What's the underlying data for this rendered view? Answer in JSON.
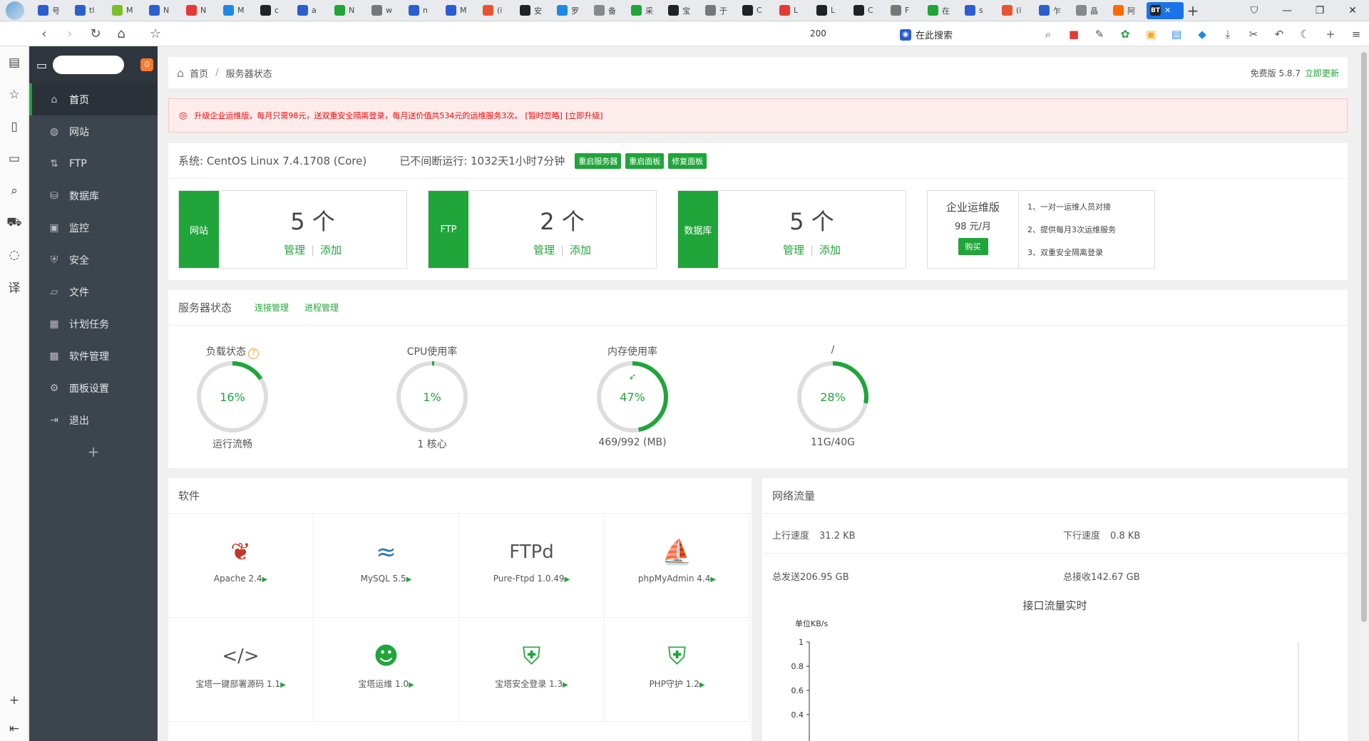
{
  "browser": {
    "tabs": [
      {
        "icon": "tab-favicon",
        "label": "号",
        "color": "#2b5ecf"
      },
      {
        "icon": "tab-favicon",
        "label": "tl",
        "color": "#2b5ecf"
      },
      {
        "icon": "tab-favicon",
        "label": "M",
        "color": "#7bbf2a"
      },
      {
        "icon": "tab-favicon",
        "label": "N",
        "color": "#2b5ecf"
      },
      {
        "icon": "tab-favicon",
        "label": "N",
        "color": "#e53935"
      },
      {
        "icon": "tab-favicon",
        "label": "M",
        "color": "#1e88e5"
      },
      {
        "icon": "tab-favicon",
        "label": "c",
        "color": "#222222"
      },
      {
        "icon": "tab-favicon",
        "label": "a",
        "color": "#2b5ecf"
      },
      {
        "icon": "tab-favicon",
        "label": "N",
        "color": "#20a53a"
      },
      {
        "icon": "tab-favicon",
        "label": "w",
        "color": "#777777"
      },
      {
        "icon": "tab-favicon",
        "label": "n",
        "color": "#2b5ecf"
      },
      {
        "icon": "tab-favicon",
        "label": "M",
        "color": "#2b5ecf"
      },
      {
        "icon": "tab-favicon",
        "label": "(i",
        "color": "#e8542f"
      },
      {
        "icon": "tab-favicon",
        "label": "安",
        "color": "#222222"
      },
      {
        "icon": "tab-favicon",
        "label": "罗",
        "color": "#1e88e5"
      },
      {
        "icon": "tab-favicon",
        "label": "备",
        "color": "#888888"
      },
      {
        "icon": "tab-favicon",
        "label": "采",
        "color": "#20a53a"
      },
      {
        "icon": "tab-favicon",
        "label": "宝",
        "color": "#222222"
      },
      {
        "icon": "tab-favicon",
        "label": "于",
        "color": "#777777"
      },
      {
        "icon": "tab-favicon",
        "label": "C",
        "color": "#222222"
      },
      {
        "icon": "tab-favicon",
        "label": "L",
        "color": "#e53935"
      },
      {
        "icon": "tab-favicon",
        "label": "L",
        "color": "#222222"
      },
      {
        "icon": "tab-favicon",
        "label": "C",
        "color": "#222222"
      },
      {
        "icon": "tab-favicon",
        "label": "F",
        "color": "#777777"
      },
      {
        "icon": "tab-favicon",
        "label": "在",
        "color": "#20a53a"
      },
      {
        "icon": "tab-favicon",
        "label": "s",
        "color": "#2b5ecf"
      },
      {
        "icon": "tab-favicon",
        "label": "(i",
        "color": "#e8542f"
      },
      {
        "icon": "tab-favicon",
        "label": "乍",
        "color": "#2b5ecf"
      },
      {
        "icon": "tab-favicon",
        "label": "晶",
        "color": "#888888"
      },
      {
        "icon": "tab-favicon",
        "label": "阿",
        "color": "#ff6a00"
      }
    ],
    "active_tab": {
      "label": "BT"
    },
    "zoom": "200",
    "search_placeholder": "在此搜索"
  },
  "panel": {
    "badge": "0",
    "menu": [
      {
        "label": "首页",
        "icon": "home-icon"
      },
      {
        "label": "网站",
        "icon": "globe-icon"
      },
      {
        "label": "FTP",
        "icon": "ftp-icon"
      },
      {
        "label": "数据库",
        "icon": "database-icon"
      },
      {
        "label": "监控",
        "icon": "monitor-icon"
      },
      {
        "label": "安全",
        "icon": "shield-icon"
      },
      {
        "label": "文件",
        "icon": "folder-icon"
      },
      {
        "label": "计划任务",
        "icon": "calendar-icon"
      },
      {
        "label": "软件管理",
        "icon": "apps-icon"
      },
      {
        "label": "面板设置",
        "icon": "settings-icon"
      },
      {
        "label": "退出",
        "icon": "logout-icon"
      }
    ],
    "add": "+"
  },
  "breadcrumb": {
    "home": "首页",
    "current": "服务器状态",
    "version": "免费版 5.8.7",
    "update": "立即更新"
  },
  "alert": {
    "text": "升级企业运维版，每月只需98元，送双重安全隔离登录，每月送价值共534元的运维服务3次。",
    "ignore": "[暂时忽略]",
    "upgrade": "[立即升级]"
  },
  "system": {
    "os": "系统: CentOS Linux 7.4.1708 (Core)",
    "uptime": "已不间断运行: 1032天1小时7分钟",
    "restart_server": "重启服务器",
    "restart_panel": "重启面板",
    "repair_panel": "修复面板"
  },
  "stats": [
    {
      "tag": "网站",
      "count": "5 个",
      "manage": "管理",
      "add": "添加"
    },
    {
      "tag": "FTP",
      "count": "2 个",
      "manage": "管理",
      "add": "添加"
    },
    {
      "tag": "数据库",
      "count": "5 个",
      "manage": "管理",
      "add": "添加"
    }
  ],
  "enterprise": {
    "title": "企业运维版",
    "price": "98 元/月",
    "buy": "购买",
    "features": [
      "1、一对一运维人员对接",
      "2、提供每月3次运维服务",
      "3、双重安全隔离登录"
    ]
  },
  "server_status": {
    "title": "服务器状态",
    "link_conn": "连接管理",
    "link_proc": "进程管理",
    "gauges": [
      {
        "title": "负载状态",
        "help": "?",
        "percent": 16,
        "label": "16%",
        "bottom": "运行流畅"
      },
      {
        "title": "CPU使用率",
        "percent": 1,
        "label": "1%",
        "bottom": "1 核心"
      },
      {
        "title": "内存使用率",
        "percent": 47,
        "label": "47%",
        "bottom": "469/992 (MB)",
        "icon": "rocket-icon"
      },
      {
        "title": "/",
        "percent": 28,
        "label": "28%",
        "bottom": "11G/40G"
      }
    ]
  },
  "software": {
    "title": "软件",
    "items": [
      {
        "name": "Apache 2.4",
        "icon": "apache-feather-icon"
      },
      {
        "name": "MySQL 5.5",
        "icon": "mysql-dolphin-icon"
      },
      {
        "name": "Pure-Ftpd 1.0.49",
        "icon": "pureftpd-logo-icon"
      },
      {
        "name": "phpMyAdmin 4.4",
        "icon": "phpmyadmin-sail-icon"
      },
      {
        "name": "宝塔一键部署源码 1.1",
        "icon": "code-icon"
      },
      {
        "name": "宝塔运维 1.0",
        "icon": "operator-icon"
      },
      {
        "name": "宝塔安全登录 1.3",
        "icon": "secure-login-icon"
      },
      {
        "name": "PHP守护 1.2",
        "icon": "php-guard-icon"
      }
    ]
  },
  "network": {
    "title": "网络流量",
    "up_label": "上行速度",
    "up_value": "31.2 KB",
    "down_label": "下行速度",
    "down_value": "0.8 KB",
    "sent_label": "总发送",
    "sent_value": "206.95 GB",
    "recv_label": "总接收",
    "recv_value": "142.67 GB"
  },
  "chart_data": {
    "type": "line",
    "title": "接口流量实时",
    "ylabel": "单位KB/s",
    "ylim": [
      0,
      1
    ],
    "yticks": [
      "1",
      "0.8",
      "0.6",
      "0.4"
    ],
    "series": []
  },
  "colors": {
    "accent": "#20a53a",
    "alert": "#ef0808",
    "sidebar": "#3c444d"
  }
}
